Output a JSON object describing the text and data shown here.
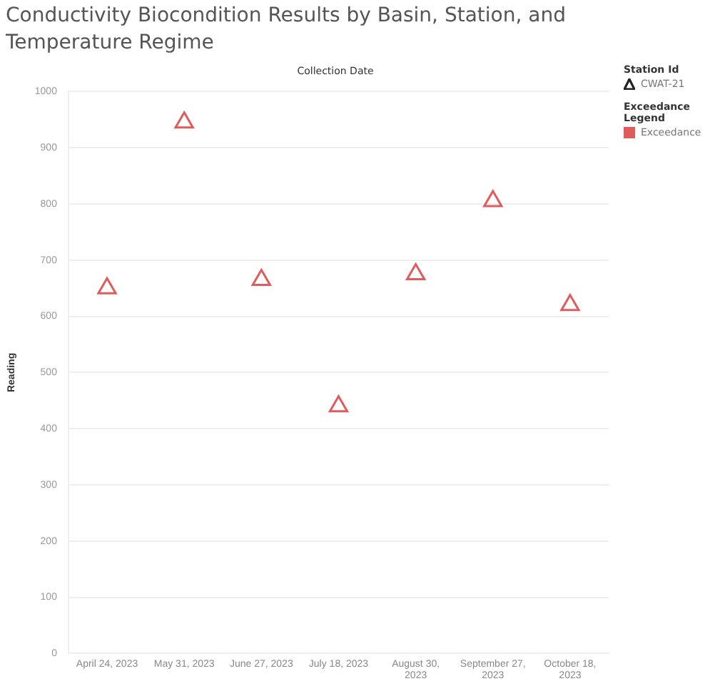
{
  "chart_data": {
    "type": "scatter",
    "title": "Conductivity Biocondition Results by Basin, Station, and Temperature Regime",
    "xlabel": "Collection Date",
    "ylabel": "Reading",
    "legend_title": "Station Id",
    "categories": [
      "April 24, 2023",
      "May 31, 2023",
      "June 27, 2023",
      "July 18, 2023",
      "August 30, 2023",
      "September 27, 2023",
      "October 18, 2023"
    ],
    "series": [
      {
        "name": "CWAT-21",
        "color": "#e05c5c",
        "values": [
          650,
          945,
          665,
          440,
          675,
          805,
          620
        ]
      }
    ],
    "ylim": [
      0,
      1000
    ],
    "yticks": [
      0,
      100,
      200,
      300,
      400,
      500,
      600,
      700,
      800,
      900,
      1000
    ],
    "grid": "y",
    "legend": "top right",
    "marker": "triangle",
    "annotations": [
      "Exceedance Legend",
      "Exceedance"
    ]
  }
}
